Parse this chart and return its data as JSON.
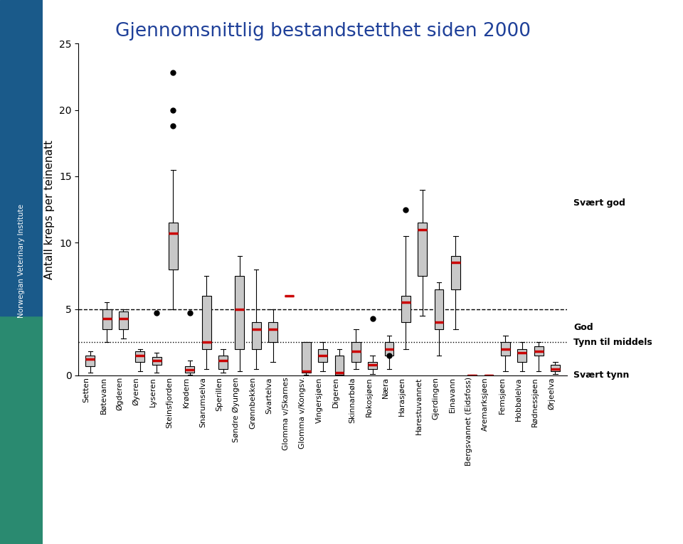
{
  "title": "Gjennomsnittlig bestandstetthet siden 2000",
  "ylabel": "Antall kreps per teinenatt",
  "ylim": [
    0,
    25
  ],
  "yticks": [
    0,
    5,
    10,
    15,
    20,
    25
  ],
  "hline_dashed": 5.0,
  "hline_dotted": 2.5,
  "right_labels": [
    {
      "y": 13.0,
      "text": "Svært god",
      "bold": true
    },
    {
      "y": 3.6,
      "text": "God",
      "bold": true
    },
    {
      "y": 2.5,
      "text": "Tynn til middels",
      "bold": true
    },
    {
      "y": 0.0,
      "text": "Svært tynn",
      "bold": true
    }
  ],
  "categories": [
    "Setten",
    "Bøtevann",
    "Øgderen",
    "Øyeren",
    "Lyseren",
    "Steinsfjorden",
    "Krødern",
    "Snarumselva",
    "Sperillen",
    "Søndre Øyungen",
    "Grønnbekken",
    "Svartelva",
    "Glomma v/Skarnes",
    "Glomma v/Kongsv.",
    "Vingersjøen",
    "Digeren",
    "Skinnarbøla",
    "Rokosjøen",
    "Næra",
    "Harasjøen",
    "Harestuvannet",
    "Gjerdingen",
    "Einavann",
    "Bergsvannet (Eidsfoss)",
    "Aremarksjøen",
    "Femsjøen",
    "Hobbølelva",
    "Rødnessjøen",
    "Ørjeelva"
  ],
  "boxes": [
    {
      "q1": 0.7,
      "median": 1.2,
      "q3": 1.5,
      "whislo": 0.2,
      "whishi": 1.8,
      "fliers": []
    },
    {
      "q1": 3.5,
      "median": 4.3,
      "q3": 5.0,
      "whislo": 2.5,
      "whishi": 5.5,
      "fliers": []
    },
    {
      "q1": 3.5,
      "median": 4.3,
      "q3": 4.8,
      "whislo": 2.8,
      "whishi": 5.0,
      "fliers": []
    },
    {
      "q1": 1.0,
      "median": 1.5,
      "q3": 1.8,
      "whislo": 0.3,
      "whishi": 2.0,
      "fliers": []
    },
    {
      "q1": 0.8,
      "median": 1.1,
      "q3": 1.4,
      "whislo": 0.2,
      "whishi": 1.7,
      "fliers": [
        4.7
      ]
    },
    {
      "q1": 8.0,
      "median": 10.7,
      "q3": 11.5,
      "whislo": 5.0,
      "whishi": 15.5,
      "fliers": [
        18.8,
        20.0,
        22.8
      ]
    },
    {
      "q1": 0.2,
      "median": 0.4,
      "q3": 0.7,
      "whislo": 0.05,
      "whishi": 1.1,
      "fliers": [
        4.7
      ]
    },
    {
      "q1": 2.0,
      "median": 2.5,
      "q3": 6.0,
      "whislo": 0.5,
      "whishi": 7.5,
      "fliers": []
    },
    {
      "q1": 0.5,
      "median": 1.1,
      "q3": 1.5,
      "whislo": 0.2,
      "whishi": 2.0,
      "fliers": []
    },
    {
      "q1": 2.0,
      "median": 5.0,
      "q3": 7.5,
      "whislo": 0.3,
      "whishi": 9.0,
      "fliers": []
    },
    {
      "q1": 2.0,
      "median": 3.5,
      "q3": 4.0,
      "whislo": 0.5,
      "whishi": 8.0,
      "fliers": []
    },
    {
      "q1": 2.5,
      "median": 3.5,
      "q3": 4.0,
      "whislo": 1.0,
      "whishi": 5.0,
      "fliers": []
    },
    {
      "q1": 6.0,
      "median": 6.0,
      "q3": 6.0,
      "whislo": 6.0,
      "whishi": 6.0,
      "fliers": []
    },
    {
      "q1": 0.2,
      "median": 0.3,
      "q3": 2.5,
      "whislo": 0.05,
      "whishi": 2.5,
      "fliers": []
    },
    {
      "q1": 1.0,
      "median": 1.5,
      "q3": 2.0,
      "whislo": 0.3,
      "whishi": 2.5,
      "fliers": []
    },
    {
      "q1": 0.05,
      "median": 0.2,
      "q3": 1.5,
      "whislo": 0.0,
      "whishi": 2.0,
      "fliers": []
    },
    {
      "q1": 1.0,
      "median": 1.8,
      "q3": 2.5,
      "whislo": 0.5,
      "whishi": 3.5,
      "fliers": []
    },
    {
      "q1": 0.5,
      "median": 0.8,
      "q3": 1.0,
      "whislo": 0.1,
      "whishi": 1.5,
      "fliers": [
        4.3
      ]
    },
    {
      "q1": 1.5,
      "median": 2.0,
      "q3": 2.5,
      "whislo": 0.5,
      "whishi": 3.0,
      "fliers": [
        1.5
      ]
    },
    {
      "q1": 4.0,
      "median": 5.5,
      "q3": 6.0,
      "whislo": 2.0,
      "whishi": 10.5,
      "fliers": [
        12.5
      ]
    },
    {
      "q1": 7.5,
      "median": 11.0,
      "q3": 11.5,
      "whislo": 4.5,
      "whishi": 14.0,
      "fliers": []
    },
    {
      "q1": 3.5,
      "median": 4.0,
      "q3": 6.5,
      "whislo": 1.5,
      "whishi": 7.0,
      "fliers": []
    },
    {
      "q1": 6.5,
      "median": 8.5,
      "q3": 9.0,
      "whislo": 3.5,
      "whishi": 10.5,
      "fliers": []
    },
    {
      "q1": 0.0,
      "median": 0.0,
      "q3": 0.05,
      "whislo": 0.0,
      "whishi": 0.05,
      "fliers": []
    },
    {
      "q1": 0.0,
      "median": 0.0,
      "q3": 0.05,
      "whislo": 0.0,
      "whishi": 0.05,
      "fliers": []
    },
    {
      "q1": 1.5,
      "median": 2.0,
      "q3": 2.5,
      "whislo": 0.3,
      "whishi": 3.0,
      "fliers": []
    },
    {
      "q1": 1.0,
      "median": 1.7,
      "q3": 2.0,
      "whislo": 0.3,
      "whishi": 2.5,
      "fliers": []
    },
    {
      "q1": 1.5,
      "median": 1.8,
      "q3": 2.2,
      "whislo": 0.3,
      "whishi": 2.5,
      "fliers": []
    },
    {
      "q1": 0.3,
      "median": 0.5,
      "q3": 0.8,
      "whislo": 0.1,
      "whishi": 1.0,
      "fliers": []
    }
  ],
  "box_facecolor": "#c8c8c8",
  "box_edgecolor": "#000000",
  "median_color": "#cc0000",
  "median_linewidth": 2.5,
  "flier_color": "#000000",
  "whisker_color": "#000000",
  "cap_color": "#000000",
  "title_color": "#1f4099",
  "sidebar_top": "#1a5a8a",
  "sidebar_bottom": "#2a8a70",
  "fig_width": 9.6,
  "fig_height": 7.65,
  "dpi": 100
}
